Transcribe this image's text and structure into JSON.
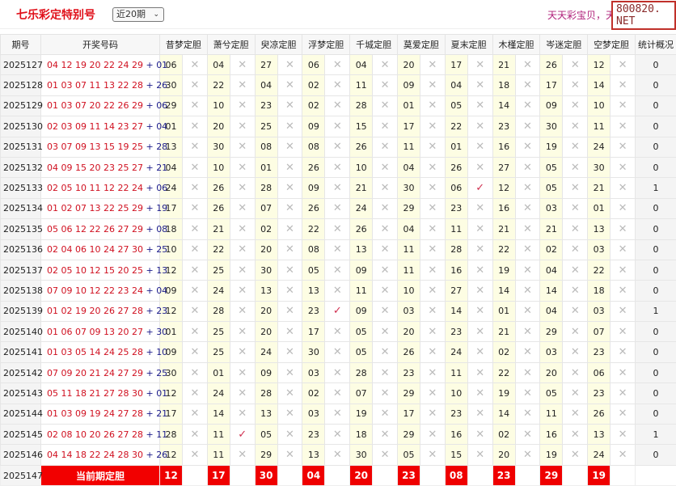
{
  "header": {
    "title": "七乐彩定特别号",
    "period_select": "近20期",
    "marquee": "天天彩宝贝，天天彩宝贝",
    "watermark": "800820. NET"
  },
  "columns": [
    "期号",
    "开奖号码",
    "昔梦定胆",
    "萧兮定胆",
    "臾凉定胆",
    "浮梦定胆",
    "千城定胆",
    "莫爱定胆",
    "夏末定胆",
    "木槿定胆",
    "岑迷定胆",
    "空梦定胆",
    "统计概况"
  ],
  "rows": [
    {
      "period": "2025127",
      "main": "04 12 19 20 22 24 29",
      "special": "01",
      "picks": [
        "06",
        "04",
        "27",
        "06",
        "04",
        "20",
        "17",
        "21",
        "26",
        "12"
      ],
      "hits": [],
      "stat": "0"
    },
    {
      "period": "2025128",
      "main": "01 03 07 11 13 22 28",
      "special": "26",
      "picks": [
        "30",
        "22",
        "04",
        "02",
        "11",
        "09",
        "04",
        "18",
        "17",
        "14"
      ],
      "hits": [],
      "stat": "0"
    },
    {
      "period": "2025129",
      "main": "01 03 07 20 22 26 29",
      "special": "06",
      "picks": [
        "29",
        "10",
        "23",
        "02",
        "28",
        "01",
        "05",
        "14",
        "09",
        "10"
      ],
      "hits": [],
      "stat": "0"
    },
    {
      "period": "2025130",
      "main": "02 03 09 11 14 23 27",
      "special": "04",
      "picks": [
        "01",
        "20",
        "25",
        "09",
        "15",
        "17",
        "22",
        "23",
        "30",
        "11"
      ],
      "hits": [],
      "stat": "0"
    },
    {
      "period": "2025131",
      "main": "03 07 09 13 15 19 25",
      "special": "28",
      "picks": [
        "13",
        "30",
        "08",
        "08",
        "26",
        "11",
        "01",
        "16",
        "19",
        "24"
      ],
      "hits": [],
      "stat": "0"
    },
    {
      "period": "2025132",
      "main": "04 09 15 20 23 25 27",
      "special": "21",
      "picks": [
        "04",
        "10",
        "01",
        "26",
        "10",
        "04",
        "26",
        "27",
        "05",
        "30"
      ],
      "hits": [],
      "stat": "0"
    },
    {
      "period": "2025133",
      "main": "02 05 10 11 12 22 24",
      "special": "06",
      "picks": [
        "24",
        "26",
        "28",
        "09",
        "21",
        "30",
        "06",
        "12",
        "05",
        "21"
      ],
      "hits": [
        6
      ],
      "stat": "1"
    },
    {
      "period": "2025134",
      "main": "01 02 07 13 22 25 29",
      "special": "19",
      "picks": [
        "17",
        "26",
        "07",
        "26",
        "24",
        "29",
        "23",
        "16",
        "03",
        "01"
      ],
      "hits": [],
      "stat": "0"
    },
    {
      "period": "2025135",
      "main": "05 06 12 22 26 27 29",
      "special": "08",
      "picks": [
        "18",
        "21",
        "02",
        "22",
        "26",
        "04",
        "11",
        "21",
        "21",
        "13"
      ],
      "hits": [],
      "stat": "0"
    },
    {
      "period": "2025136",
      "main": "02 04 06 10 24 27 30",
      "special": "25",
      "picks": [
        "10",
        "22",
        "20",
        "08",
        "13",
        "11",
        "28",
        "22",
        "02",
        "03"
      ],
      "hits": [],
      "stat": "0"
    },
    {
      "period": "2025137",
      "main": "02 05 10 12 15 20 25",
      "special": "13",
      "picks": [
        "12",
        "25",
        "30",
        "05",
        "09",
        "11",
        "16",
        "19",
        "04",
        "22"
      ],
      "hits": [],
      "stat": "0"
    },
    {
      "period": "2025138",
      "main": "07 09 10 12 22 23 24",
      "special": "04",
      "picks": [
        "09",
        "24",
        "13",
        "13",
        "11",
        "10",
        "27",
        "14",
        "14",
        "18"
      ],
      "hits": [],
      "stat": "0"
    },
    {
      "period": "2025139",
      "main": "01 02 19 20 26 27 28",
      "special": "23",
      "picks": [
        "12",
        "28",
        "20",
        "23",
        "09",
        "03",
        "14",
        "01",
        "04",
        "03"
      ],
      "hits": [
        3
      ],
      "stat": "1"
    },
    {
      "period": "2025140",
      "main": "01 06 07 09 13 20 27",
      "special": "30",
      "picks": [
        "01",
        "25",
        "20",
        "17",
        "05",
        "20",
        "23",
        "21",
        "29",
        "07"
      ],
      "hits": [],
      "stat": "0"
    },
    {
      "period": "2025141",
      "main": "01 03 05 14 24 25 28",
      "special": "10",
      "picks": [
        "09",
        "25",
        "24",
        "30",
        "05",
        "26",
        "24",
        "02",
        "03",
        "23"
      ],
      "hits": [],
      "stat": "0"
    },
    {
      "period": "2025142",
      "main": "07 09 20 21 24 27 29",
      "special": "25",
      "picks": [
        "30",
        "01",
        "09",
        "03",
        "28",
        "23",
        "11",
        "22",
        "20",
        "06"
      ],
      "hits": [],
      "stat": "0"
    },
    {
      "period": "2025143",
      "main": "05 11 18 21 27 28 30",
      "special": "01",
      "picks": [
        "12",
        "24",
        "28",
        "02",
        "07",
        "29",
        "10",
        "19",
        "05",
        "23"
      ],
      "hits": [],
      "stat": "0"
    },
    {
      "period": "2025144",
      "main": "01 03 09 19 24 27 28",
      "special": "21",
      "picks": [
        "17",
        "14",
        "13",
        "03",
        "19",
        "17",
        "23",
        "14",
        "11",
        "26"
      ],
      "hits": [],
      "stat": "0"
    },
    {
      "period": "2025145",
      "main": "02 08 10 20 26 27 28",
      "special": "11",
      "picks": [
        "28",
        "11",
        "05",
        "23",
        "18",
        "29",
        "16",
        "02",
        "16",
        "13"
      ],
      "hits": [
        1
      ],
      "stat": "1"
    },
    {
      "period": "2025146",
      "main": "04 14 18 22 24 28 30",
      "special": "26",
      "picks": [
        "12",
        "11",
        "29",
        "13",
        "30",
        "05",
        "15",
        "20",
        "19",
        "24"
      ],
      "hits": [],
      "stat": "0"
    }
  ],
  "current": {
    "period": "2025147",
    "label": "当前期定胆",
    "picks": [
      "12",
      "17",
      "30",
      "04",
      "20",
      "23",
      "08",
      "23",
      "29",
      "19"
    ]
  },
  "symbols": {
    "miss": "✕",
    "hit": "✓",
    "plus": "+"
  },
  "colors": {
    "title": "#e0101a",
    "main_numbers": "#d01020",
    "special_number": "#1a1a8a",
    "pick_bg": "#fdfde3",
    "current_bg": "#ef0000",
    "hit": "#d03050"
  }
}
